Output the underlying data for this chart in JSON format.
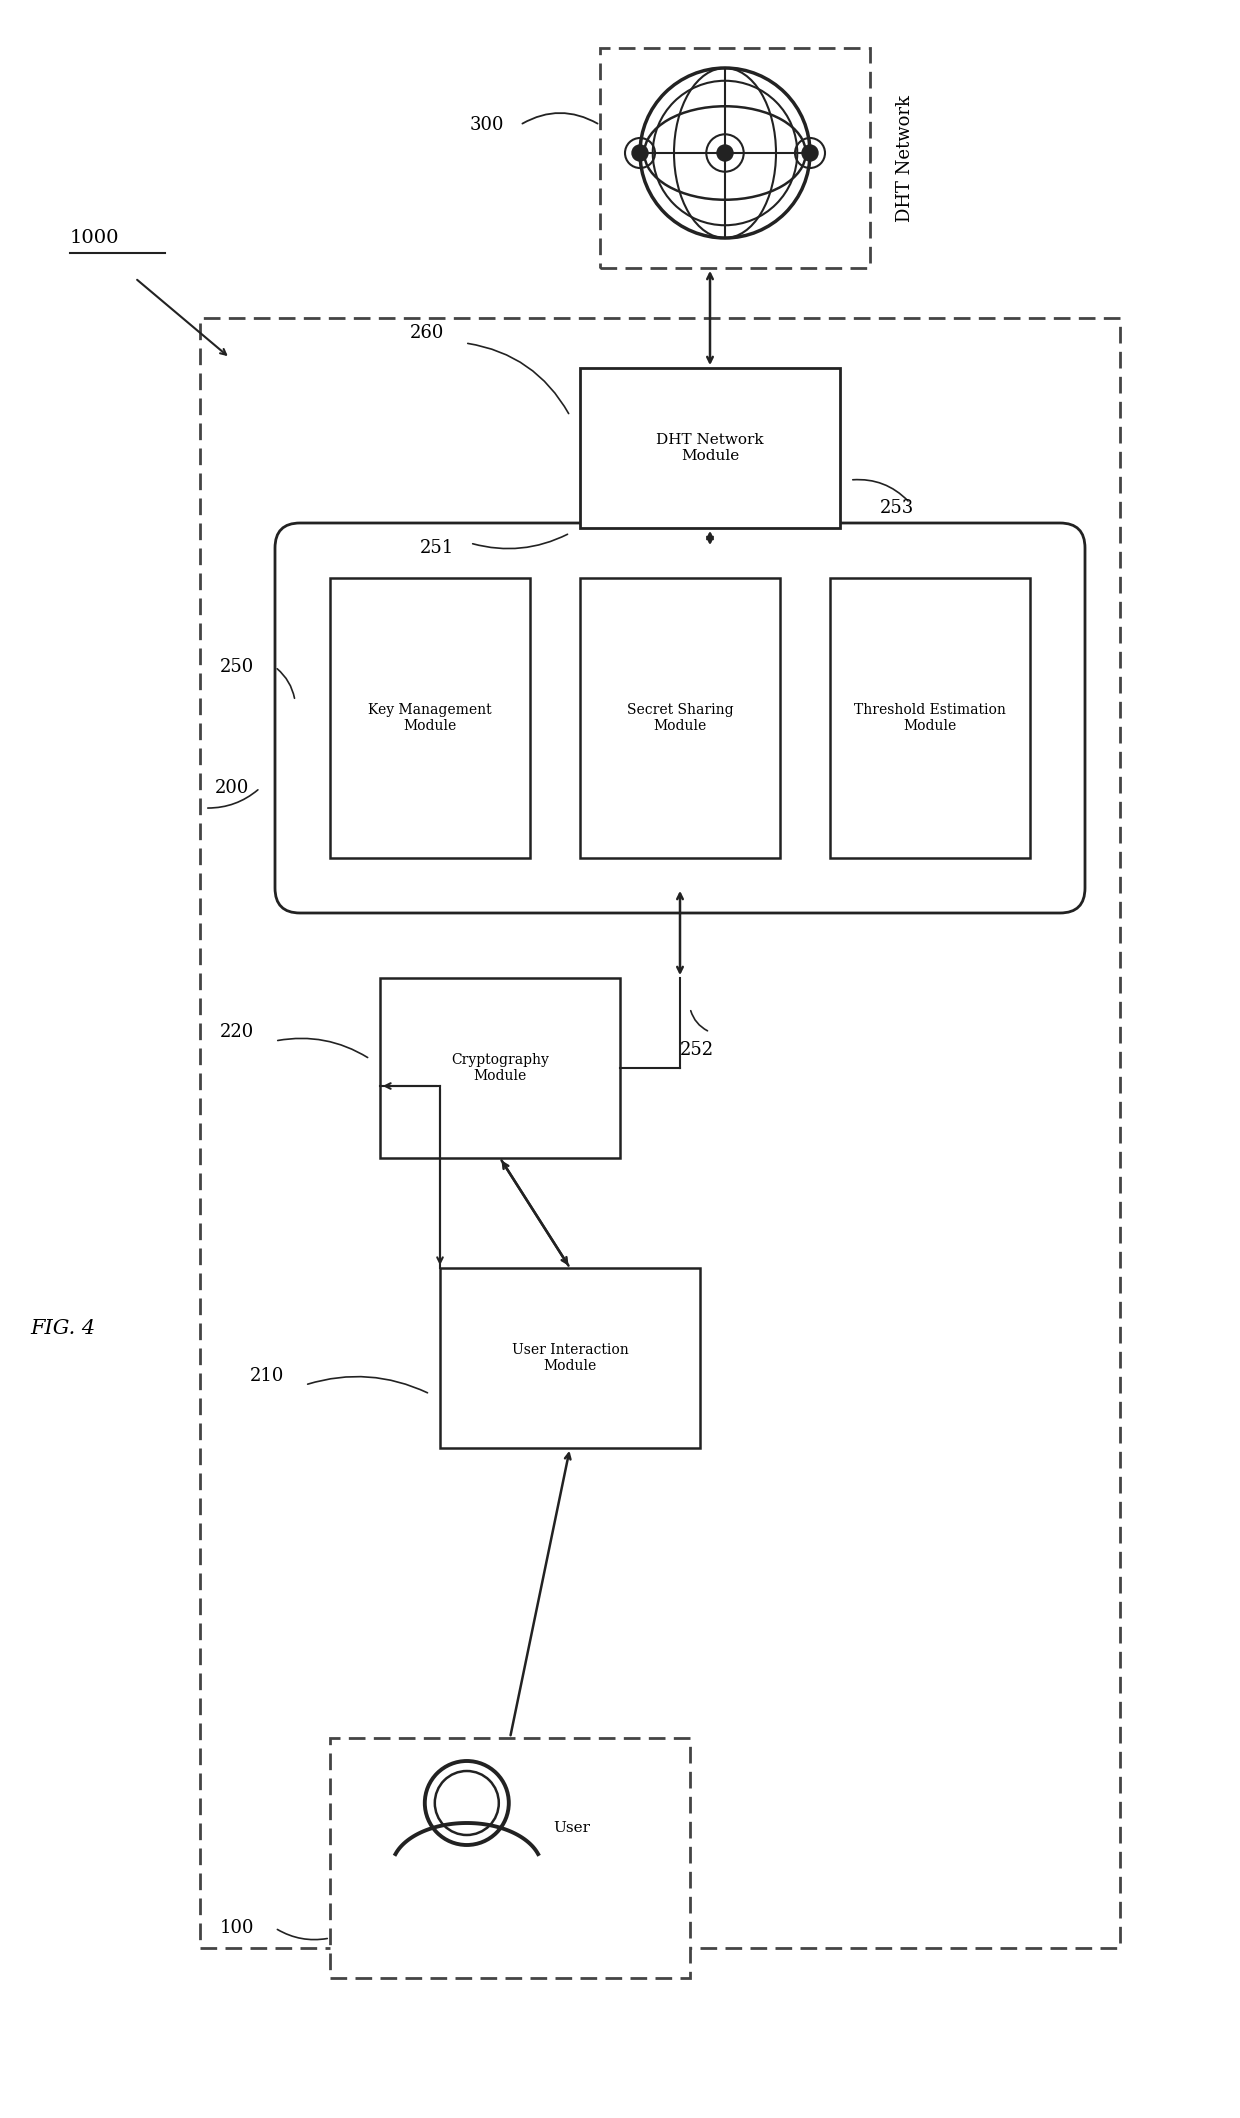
{
  "fig_label": "FIG. 4",
  "bg_color": "#ffffff",
  "label_1000": "1000",
  "label_300": "300",
  "label_200": "200",
  "label_100": "100",
  "label_210": "210",
  "label_220": "220",
  "label_250": "250",
  "label_251": "251",
  "label_252": "252",
  "label_253": "253",
  "label_260": "260",
  "dht_network_text": "DHT Network",
  "dht_network_module_text": "DHT Network\nModule",
  "key_management_text": "Key Management\nModule",
  "secret_sharing_text": "Secret Sharing\nModule",
  "threshold_estimation_text": "Threshold Estimation\nModule",
  "cryptography_text": "Cryptography\nModule",
  "user_interaction_text": "User Interaction\nModule",
  "user_text": "User",
  "line_color": "#222222",
  "dashed_color": "#444444",
  "font_size_label": 13,
  "font_size_box": 10,
  "font_size_fig": 15
}
